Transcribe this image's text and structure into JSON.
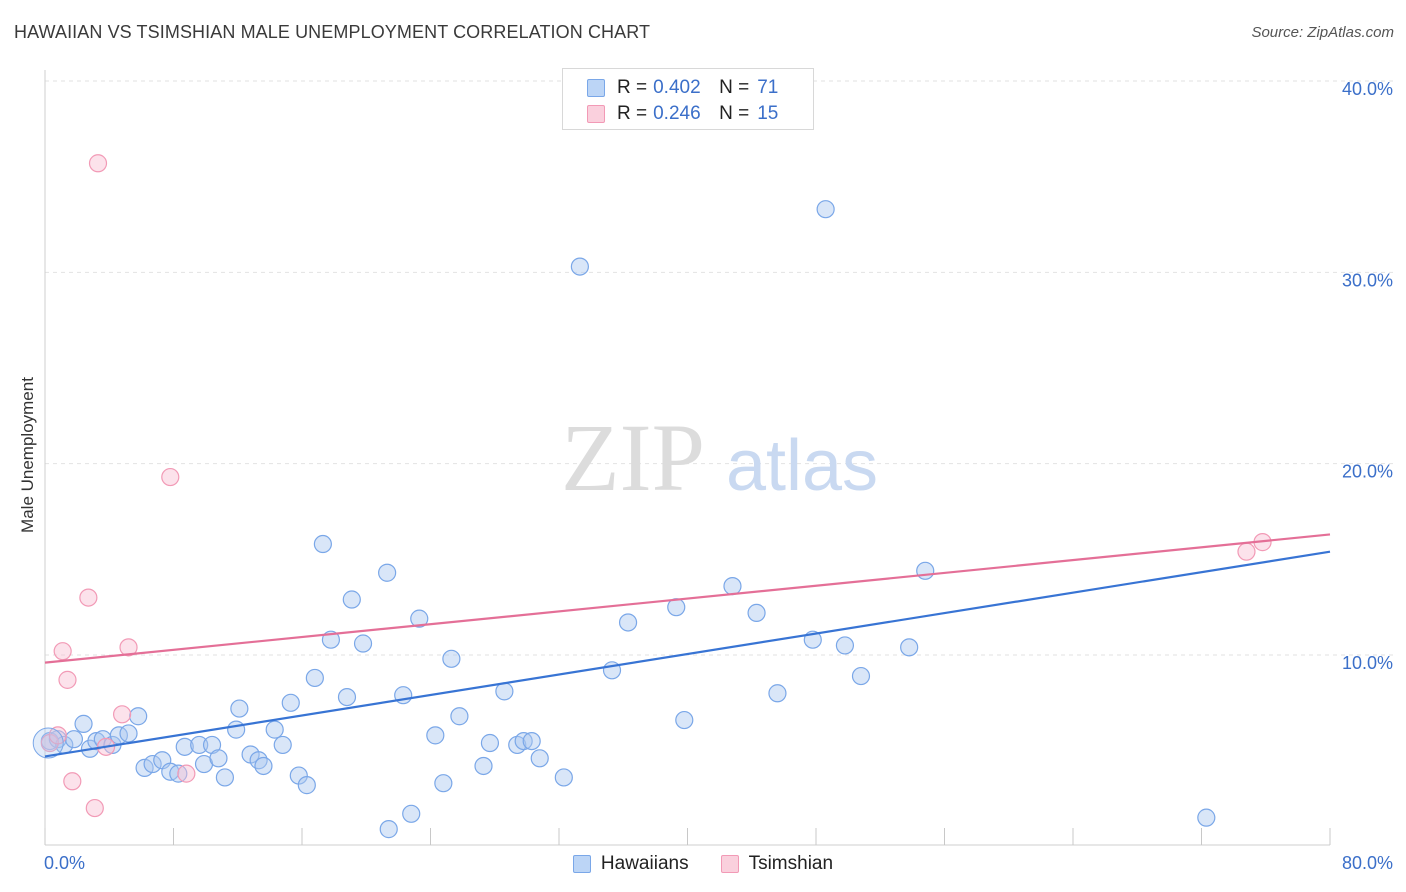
{
  "title": "HAWAIIAN VS TSIMSHIAN MALE UNEMPLOYMENT CORRELATION CHART",
  "source": "Source: ZipAtlas.com",
  "watermark": {
    "zip": "ZIP",
    "atlas": "atlas"
  },
  "legend": {
    "rows": [
      {
        "r_label": "R =",
        "r_value": "0.402",
        "n_label": "N =",
        "n_value": "71"
      },
      {
        "r_label": "R =",
        "r_value": "0.246",
        "n_label": "N =",
        "n_value": "15"
      }
    ]
  },
  "chart_data": {
    "type": "scatter",
    "title": "HAWAIIAN VS TSIMSHIAN MALE UNEMPLOYMENT CORRELATION CHART",
    "xlabel": "",
    "ylabel": "Male Unemployment",
    "xlim": [
      0,
      80
    ],
    "ylim": [
      0,
      42
    ],
    "x_tick_labels": [
      "0.0%",
      "80.0%"
    ],
    "y_ticks": [
      10,
      20,
      30,
      40
    ],
    "y_tick_labels": [
      "10.0%",
      "20.0%",
      "30.0%",
      "40.0%"
    ],
    "grid": true,
    "colors": {
      "Hawaiians": "#7aa7e8",
      "Tsimshian": "#f29ab6"
    },
    "line_colors": {
      "Hawaiians": "#3874d4",
      "Tsimshian": "#e46f97"
    },
    "series": [
      {
        "name": "Hawaiians",
        "trend": [
          [
            0,
            4.7
          ],
          [
            80,
            15.4
          ]
        ],
        "points": [
          [
            0.3,
            5.5
          ],
          [
            0.8,
            5.6
          ],
          [
            1.2,
            5.3
          ],
          [
            1.8,
            5.6
          ],
          [
            2.4,
            6.4
          ],
          [
            2.8,
            5.1
          ],
          [
            3.2,
            5.5
          ],
          [
            3.6,
            5.6
          ],
          [
            4.2,
            5.3
          ],
          [
            4.6,
            5.8
          ],
          [
            5.2,
            5.9
          ],
          [
            5.8,
            6.8
          ],
          [
            6.2,
            4.1
          ],
          [
            6.7,
            4.3
          ],
          [
            7.3,
            4.5
          ],
          [
            7.8,
            3.9
          ],
          [
            8.3,
            3.8
          ],
          [
            8.7,
            5.2
          ],
          [
            9.6,
            5.3
          ],
          [
            9.9,
            4.3
          ],
          [
            10.4,
            5.3
          ],
          [
            10.8,
            4.6
          ],
          [
            11.2,
            3.6
          ],
          [
            11.9,
            6.1
          ],
          [
            12.1,
            7.2
          ],
          [
            12.8,
            4.8
          ],
          [
            13.3,
            4.5
          ],
          [
            13.6,
            4.2
          ],
          [
            14.3,
            6.1
          ],
          [
            14.8,
            5.3
          ],
          [
            15.3,
            7.5
          ],
          [
            15.8,
            3.7
          ],
          [
            16.3,
            3.2
          ],
          [
            16.8,
            8.8
          ],
          [
            17.3,
            15.8
          ],
          [
            17.8,
            10.8
          ],
          [
            18.8,
            7.8
          ],
          [
            19.1,
            12.9
          ],
          [
            19.8,
            10.6
          ],
          [
            21.3,
            14.3
          ],
          [
            21.4,
            0.9
          ],
          [
            22.3,
            7.9
          ],
          [
            22.8,
            1.7
          ],
          [
            23.3,
            11.9
          ],
          [
            24.3,
            5.8
          ],
          [
            24.8,
            3.3
          ],
          [
            25.3,
            9.8
          ],
          [
            25.8,
            6.8
          ],
          [
            27.3,
            4.2
          ],
          [
            27.7,
            5.4
          ],
          [
            28.6,
            8.1
          ],
          [
            29.4,
            5.3
          ],
          [
            29.8,
            5.5
          ],
          [
            30.3,
            5.5
          ],
          [
            30.8,
            4.6
          ],
          [
            32.3,
            3.6
          ],
          [
            33.3,
            30.3
          ],
          [
            35.3,
            9.2
          ],
          [
            36.3,
            11.7
          ],
          [
            39.3,
            12.5
          ],
          [
            39.8,
            6.6
          ],
          [
            42.8,
            13.6
          ],
          [
            44.3,
            12.2
          ],
          [
            45.6,
            8.0
          ],
          [
            47.8,
            10.8
          ],
          [
            48.6,
            33.3
          ],
          [
            49.8,
            10.5
          ],
          [
            50.8,
            8.9
          ],
          [
            53.8,
            10.4
          ],
          [
            54.8,
            14.4
          ],
          [
            72.3,
            1.5
          ]
        ]
      },
      {
        "name": "Tsimshian",
        "trend": [
          [
            0,
            9.6
          ],
          [
            80,
            16.3
          ]
        ],
        "points": [
          [
            0.3,
            5.4
          ],
          [
            0.8,
            5.8
          ],
          [
            1.1,
            10.2
          ],
          [
            1.4,
            8.7
          ],
          [
            1.7,
            3.4
          ],
          [
            2.7,
            13.0
          ],
          [
            3.1,
            2.0
          ],
          [
            3.3,
            35.7
          ],
          [
            3.8,
            5.2
          ],
          [
            4.8,
            6.9
          ],
          [
            5.2,
            10.4
          ],
          [
            7.8,
            19.3
          ],
          [
            8.8,
            3.8
          ],
          [
            74.8,
            15.4
          ],
          [
            75.8,
            15.9
          ]
        ]
      }
    ]
  },
  "bottom_legend": [
    "Hawaiians",
    "Tsimshian"
  ]
}
